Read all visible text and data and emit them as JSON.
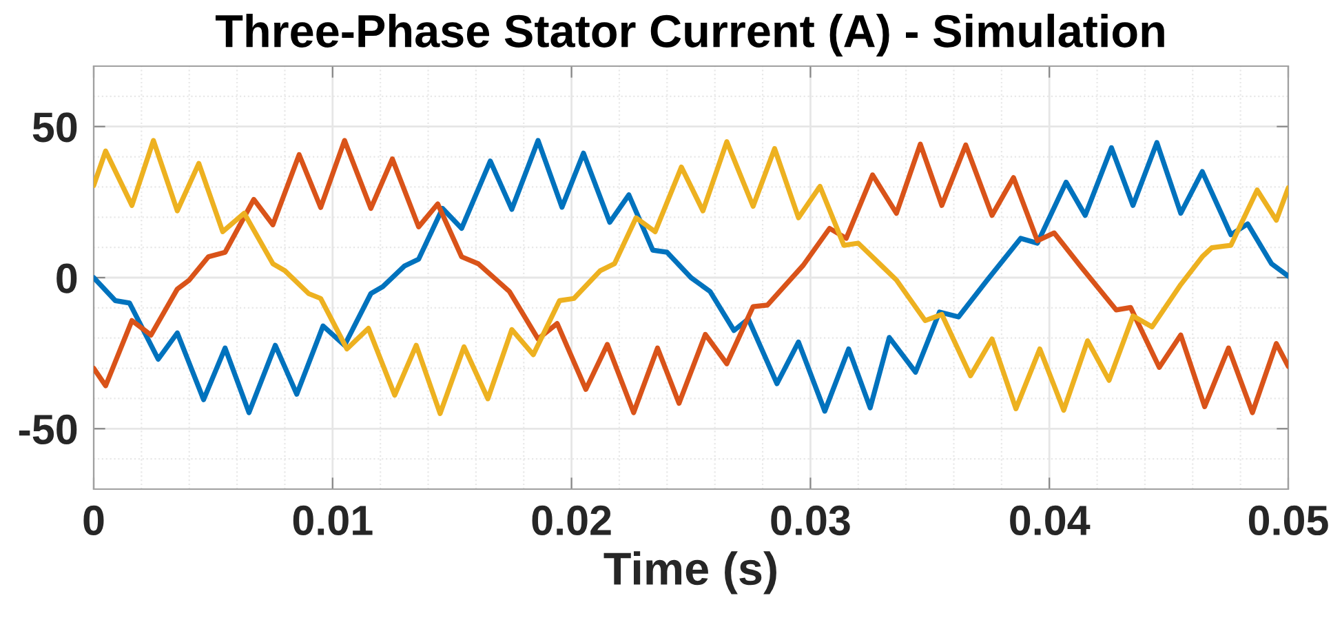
{
  "chart_data": {
    "type": "line",
    "title": "Three-Phase Stator Current (A) - Simulation",
    "xlabel": "Time (s)",
    "xlim": [
      0,
      0.05
    ],
    "xticks": [
      0,
      0.01,
      0.02,
      0.03,
      0.04,
      0.05
    ],
    "ylim": [
      -70,
      70
    ],
    "yticks": [
      -50,
      0,
      50
    ],
    "grid": true,
    "line_style": "solid",
    "series": [
      {
        "color": "#0072bd",
        "x": [
          0,
          0.0009,
          0.0015,
          0.0027,
          0.0035,
          0.0046,
          0.0055,
          0.0065,
          0.0076,
          0.0085,
          0.0096,
          0.0105,
          0.0116,
          0.0121,
          0.013,
          0.0136,
          0.0146,
          0.0154,
          0.0166,
          0.0175,
          0.0186,
          0.0196,
          0.0205,
          0.0216,
          0.0224,
          0.0234,
          0.024,
          0.025,
          0.0258,
          0.0268,
          0.0274,
          0.0286,
          0.0295,
          0.0306,
          0.0316,
          0.0325,
          0.0333,
          0.0344,
          0.0354,
          0.0362,
          0.0374,
          0.0388,
          0.0395,
          0.0407,
          0.0415,
          0.0426,
          0.0435,
          0.0445,
          0.0455,
          0.0464,
          0.0476,
          0.0483,
          0.0493,
          0.05
        ],
        "values": [
          0,
          -7.6,
          -8.4,
          -27,
          -18.3,
          -40.4,
          -23.3,
          -44.7,
          -22.4,
          -38.6,
          -16,
          -22.4,
          -5.3,
          -3,
          3.8,
          6.1,
          22.9,
          16.3,
          38.6,
          22.6,
          45.4,
          23.3,
          41.2,
          18.3,
          27.4,
          9.1,
          8.4,
          0,
          -4.6,
          -17.5,
          -13.7,
          -35.1,
          -21.3,
          -44.2,
          -23.6,
          -43.1,
          -19.8,
          -31.3,
          -11.4,
          -13,
          -0.8,
          13,
          11.4,
          31.6,
          20.6,
          43,
          23.9,
          44.7,
          21.3,
          35.1,
          14.2,
          17.8,
          4.6,
          0.5
        ]
      },
      {
        "color": "#d95319",
        "x": [
          0,
          0.0005,
          0.0016,
          0.0024,
          0.0035,
          0.004,
          0.0048,
          0.0055,
          0.0067,
          0.0075,
          0.0086,
          0.0095,
          0.0105,
          0.0116,
          0.0125,
          0.0136,
          0.0144,
          0.0154,
          0.0161,
          0.0174,
          0.0186,
          0.0194,
          0.0206,
          0.0215,
          0.0226,
          0.0236,
          0.0245,
          0.0256,
          0.0265,
          0.0276,
          0.0282,
          0.0297,
          0.0308,
          0.0315,
          0.0326,
          0.0336,
          0.0346,
          0.0355,
          0.0365,
          0.0376,
          0.0385,
          0.0395,
          0.0402,
          0.0413,
          0.0428,
          0.0434,
          0.0446,
          0.0455,
          0.0465,
          0.0475,
          0.0485,
          0.0495,
          0.05
        ],
        "values": [
          -30,
          -35.8,
          -14.2,
          -19,
          -3.8,
          -0.8,
          6.9,
          8.4,
          25.9,
          17.5,
          40.7,
          23.2,
          45.4,
          22.9,
          39.3,
          16.8,
          24.4,
          6.9,
          4.6,
          -4.6,
          -20.3,
          -15.2,
          -37,
          -22.1,
          -44.7,
          -23.3,
          -41.6,
          -18.8,
          -28.5,
          -9.6,
          -9.1,
          4.1,
          16.3,
          13,
          34,
          21.3,
          44.2,
          23.9,
          43.9,
          20.6,
          33.1,
          12.2,
          14.8,
          3.8,
          -10.7,
          -9.9,
          -29.7,
          -19,
          -42.7,
          -23.3,
          -44.7,
          -21.8,
          -29.4
        ]
      },
      {
        "color": "#edb120",
        "x": [
          0,
          0.0005,
          0.0016,
          0.0025,
          0.0035,
          0.0044,
          0.0054,
          0.0063,
          0.0075,
          0.008,
          0.009,
          0.0095,
          0.0106,
          0.0115,
          0.0126,
          0.0135,
          0.0145,
          0.0155,
          0.0165,
          0.0175,
          0.0184,
          0.0195,
          0.0201,
          0.0212,
          0.0218,
          0.0227,
          0.0235,
          0.0246,
          0.0255,
          0.0265,
          0.0276,
          0.0285,
          0.0295,
          0.0304,
          0.0314,
          0.032,
          0.0336,
          0.0348,
          0.0355,
          0.0367,
          0.0376,
          0.0386,
          0.0396,
          0.0406,
          0.0416,
          0.0425,
          0.0435,
          0.0443,
          0.0455,
          0.0464,
          0.0468,
          0.0476,
          0.0487,
          0.0495,
          0.05
        ],
        "values": [
          30.5,
          41.9,
          23.9,
          45.4,
          22.1,
          37.8,
          15.2,
          21.3,
          4.6,
          2.3,
          -5.3,
          -6.9,
          -23.6,
          -16.8,
          -38.9,
          -22.4,
          -45,
          -22.9,
          -40.1,
          -17.2,
          -25.5,
          -7.6,
          -6.9,
          2.3,
          4.6,
          19.8,
          15.2,
          36.6,
          22.1,
          45,
          23.6,
          42.7,
          19.8,
          30.2,
          10.7,
          11.4,
          -0.8,
          -14.2,
          -12.2,
          -32.5,
          -20.3,
          -43.4,
          -23.6,
          -43.9,
          -20.9,
          -34,
          -12.7,
          -16.3,
          -2.3,
          6.9,
          9.9,
          10.7,
          29,
          19,
          29.7
        ]
      }
    ]
  }
}
